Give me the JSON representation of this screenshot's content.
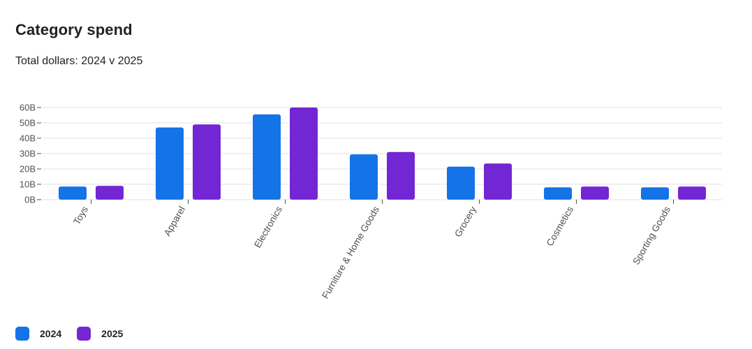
{
  "title": "Category spend",
  "subtitle": "Total dollars: 2024 v 2025",
  "colors": {
    "series_2024": "#1473e6",
    "series_2025": "#7326d3",
    "grid": "#e1e1ea",
    "axis_text": "#505050"
  },
  "legend": {
    "items": [
      {
        "label": "2024"
      },
      {
        "label": "2025"
      }
    ]
  },
  "chart_data": {
    "type": "bar",
    "title": "Category spend",
    "subtitle": "Total dollars: 2024 v 2025",
    "categories": [
      "Toys",
      "Apparel",
      "Electronics",
      "Furniture & Home Goods",
      "Grocery",
      "Cosmetics",
      "Sporting Goods"
    ],
    "series": [
      {
        "name": "2024",
        "values": [
          8.5,
          47,
          55.5,
          29.5,
          21.5,
          8,
          8
        ]
      },
      {
        "name": "2025",
        "values": [
          9,
          49,
          60,
          31,
          23.5,
          8.5,
          8.5
        ]
      }
    ],
    "yticks": [
      "0B",
      "10B",
      "20B",
      "30B",
      "40B",
      "50B",
      "60B"
    ],
    "ylim": [
      0,
      60
    ],
    "grid": true,
    "legend_position": "bottom-left"
  }
}
